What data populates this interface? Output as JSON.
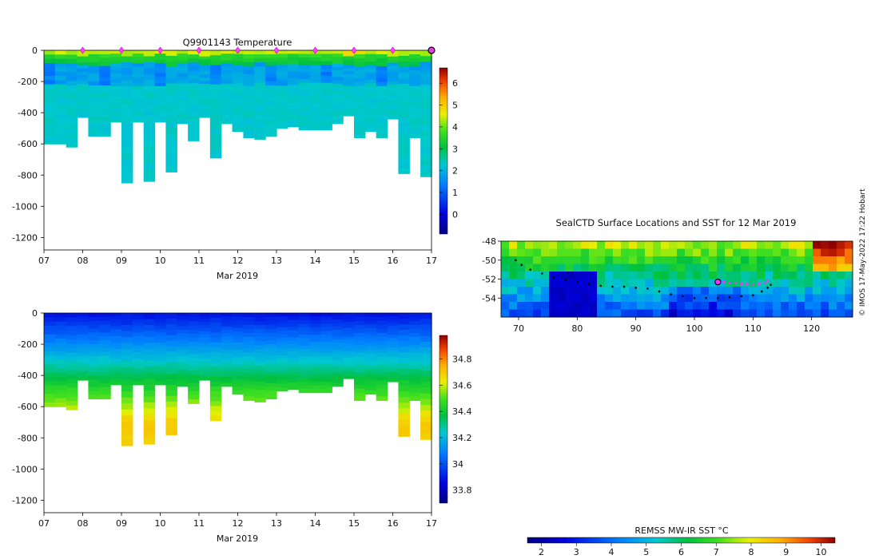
{
  "credit": "© IMOS 17-May-2022 17:22 Hobart",
  "chart_data": [
    {
      "type": "heatmap",
      "title": "Q9901143  Temperature",
      "xlabel": "Mar 2019",
      "ylabel": "",
      "xlim": [
        7,
        17
      ],
      "ylim": [
        -1280,
        0
      ],
      "xticks": [
        "07",
        "08",
        "09",
        "10",
        "11",
        "12",
        "13",
        "14",
        "15",
        "16",
        "17"
      ],
      "yticks": [
        "0",
        "-200",
        "-400",
        "-600",
        "-800",
        "-1000",
        "-1200"
      ],
      "colorbar": {
        "range": [
          -0.9,
          6.7
        ],
        "ticks": [
          "0",
          "1",
          "2",
          "3",
          "4",
          "5",
          "6"
        ]
      },
      "profile_depths": [
        -600,
        -600,
        -620,
        -430,
        -550,
        -550,
        -460,
        -850,
        -460,
        -840,
        -460,
        -780,
        -470,
        -580,
        -430,
        -690,
        -470,
        -520,
        -560,
        -570,
        -550,
        -500,
        -490,
        -510,
        -510,
        -510,
        -470,
        -420,
        -560,
        -520,
        -560,
        -440,
        -790,
        -560,
        -810
      ],
      "markers_days": [
        8,
        9,
        10,
        11,
        12,
        13,
        14,
        15,
        16
      ],
      "current_day": 17
    },
    {
      "type": "heatmap",
      "title": "",
      "xlabel": "Mar 2019",
      "ylabel": "",
      "xlim": [
        7,
        17
      ],
      "ylim": [
        -1280,
        0
      ],
      "xticks": [
        "07",
        "08",
        "09",
        "10",
        "11",
        "12",
        "13",
        "14",
        "15",
        "16",
        "17"
      ],
      "yticks": [
        "0",
        "-200",
        "-400",
        "-600",
        "-800",
        "-1000",
        "-1200"
      ],
      "colorbar": {
        "range": [
          33.7,
          34.98
        ],
        "ticks": [
          "33.8",
          "34",
          "34.2",
          "34.4",
          "34.6",
          "34.8"
        ]
      },
      "profile_depths": [
        -600,
        -600,
        -620,
        -430,
        -550,
        -550,
        -460,
        -850,
        -460,
        -840,
        -460,
        -780,
        -470,
        -580,
        -430,
        -690,
        -470,
        -520,
        -560,
        -570,
        -550,
        -500,
        -490,
        -510,
        -510,
        -510,
        -470,
        -420,
        -560,
        -520,
        -560,
        -440,
        -790,
        -560,
        -810
      ]
    },
    {
      "type": "scatter",
      "title": "SealCTD Surface Locations and SST for 12 Mar 2019",
      "xlabel": "",
      "ylabel": "",
      "xlim": [
        67,
        127
      ],
      "ylim": [
        -56,
        -48
      ],
      "xticks": [
        "70",
        "80",
        "90",
        "100",
        "110",
        "120"
      ],
      "yticks": [
        "-48",
        "-50",
        "-52",
        "-54"
      ],
      "track_lon": [
        69.5,
        70.5,
        72,
        74,
        76,
        78,
        80,
        82,
        84,
        86,
        88,
        90,
        92,
        94,
        96,
        98,
        100,
        102,
        104,
        106,
        108,
        110,
        111.5,
        112.5,
        113
      ],
      "track_lat": [
        -50.0,
        -50.5,
        -51.0,
        -51.4,
        -51.8,
        -52.1,
        -52.3,
        -52.5,
        -52.7,
        -52.8,
        -52.8,
        -52.9,
        -53.0,
        -53.3,
        -53.6,
        -53.8,
        -54.0,
        -54.0,
        -54.0,
        -53.9,
        -53.8,
        -53.7,
        -53.3,
        -52.9,
        -52.6
      ],
      "recent_lon": [
        104,
        105,
        106,
        107,
        108,
        109,
        110,
        111,
        112,
        112.5
      ],
      "recent_lat": [
        -52.3,
        -52.3,
        -52.4,
        -52.4,
        -52.5,
        -52.5,
        -52.6,
        -52.5,
        -52.4,
        -52.2
      ],
      "current_lon": 104,
      "current_lat": -52.3,
      "colorbar_label": "REMSS MW-IR SST °C",
      "colorbar_range": [
        1.6,
        10.4
      ],
      "colorbar_ticks": [
        "2",
        "3",
        "4",
        "5",
        "6",
        "7",
        "8",
        "9",
        "10"
      ]
    }
  ]
}
